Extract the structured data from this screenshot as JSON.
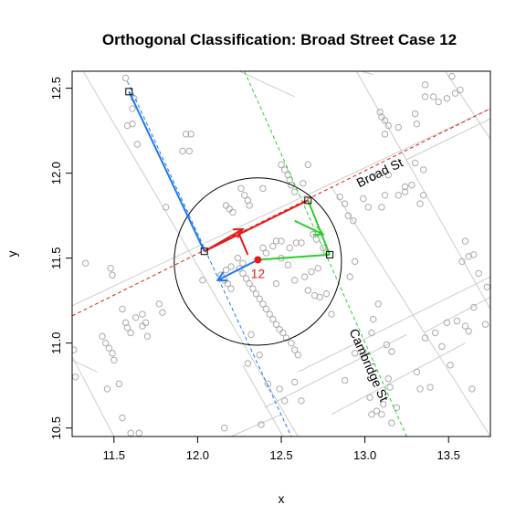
{
  "chart_data": {
    "type": "scatter",
    "title": "Orthogonal Classification: Broad Street Case 12",
    "xlabel": "x",
    "ylabel": "y",
    "xlim": [
      11.25,
      13.75
    ],
    "ylim": [
      10.45,
      12.6
    ],
    "xticks": [
      11.5,
      12.0,
      12.5,
      13.0,
      13.5
    ],
    "yticks": [
      10.5,
      11.0,
      11.5,
      12.0,
      12.5
    ],
    "xtick_labels": [
      "11.5",
      "12.0",
      "12.5",
      "13.0",
      "13.5"
    ],
    "ytick_labels": [
      "10.5",
      "11.0",
      "11.5",
      "12.0",
      "12.5"
    ],
    "grid": false,
    "colors": {
      "points": "#aaaaaa",
      "roads": "#cccccc",
      "case": "#e41a1c",
      "broad_street": "#e41a1c",
      "cambridge_street": "#2ecc2e",
      "orthogonal_blue": "#1f78f0",
      "circle": "#000000"
    },
    "points": [
      [
        11.57,
        12.56
      ],
      [
        11.62,
        12.44
      ],
      [
        11.61,
        12.38
      ],
      [
        11.58,
        12.28
      ],
      [
        11.61,
        12.29
      ],
      [
        11.64,
        12.17
      ],
      [
        11.93,
        12.23
      ],
      [
        11.91,
        12.13
      ],
      [
        11.95,
        12.13
      ],
      [
        11.96,
        12.23
      ],
      [
        12.17,
        11.81
      ],
      [
        12.19,
        11.79
      ],
      [
        12.21,
        11.77
      ],
      [
        12.26,
        11.91
      ],
      [
        12.28,
        11.87
      ],
      [
        12.3,
        11.84
      ],
      [
        12.31,
        11.81
      ],
      [
        12.39,
        11.91
      ],
      [
        12.39,
        11.56
      ],
      [
        12.41,
        11.53
      ],
      [
        12.45,
        11.57
      ],
      [
        12.47,
        11.6
      ],
      [
        12.5,
        11.6
      ],
      [
        12.55,
        11.56
      ],
      [
        12.59,
        11.59
      ],
      [
        12.62,
        11.59
      ],
      [
        12.5,
        12.05
      ],
      [
        12.52,
        12.02
      ],
      [
        12.54,
        11.99
      ],
      [
        12.55,
        11.96
      ],
      [
        12.56,
        11.93
      ],
      [
        12.58,
        11.89
      ],
      [
        12.63,
        11.94
      ],
      [
        12.66,
        12.05
      ],
      [
        12.69,
        11.64
      ],
      [
        12.71,
        11.61
      ],
      [
        12.75,
        11.56
      ],
      [
        12.77,
        11.53
      ],
      [
        12.25,
        11.44
      ],
      [
        12.27,
        11.41
      ],
      [
        12.29,
        11.38
      ],
      [
        12.31,
        11.35
      ],
      [
        12.33,
        11.32
      ],
      [
        12.35,
        11.29
      ],
      [
        12.37,
        11.26
      ],
      [
        12.39,
        11.23
      ],
      [
        12.41,
        11.2
      ],
      [
        12.43,
        11.17
      ],
      [
        12.45,
        11.14
      ],
      [
        12.47,
        11.11
      ],
      [
        12.49,
        11.08
      ],
      [
        12.51,
        11.06
      ],
      [
        12.53,
        11.03
      ],
      [
        12.56,
        11.0
      ],
      [
        12.58,
        10.96
      ],
      [
        12.6,
        10.93
      ],
      [
        12.24,
        11.5
      ],
      [
        12.27,
        11.47
      ],
      [
        12.14,
        11.4
      ],
      [
        12.16,
        11.37
      ],
      [
        12.18,
        11.35
      ],
      [
        12.2,
        11.32
      ],
      [
        12.17,
        11.43
      ],
      [
        12.2,
        11.45
      ],
      [
        12.32,
        11.05
      ],
      [
        12.37,
        10.93
      ],
      [
        12.3,
        10.88
      ],
      [
        12.49,
        10.73
      ],
      [
        12.52,
        10.66
      ],
      [
        12.38,
        10.52
      ],
      [
        12.16,
        10.5
      ],
      [
        12.42,
        10.76
      ],
      [
        12.62,
        10.66
      ],
      [
        12.58,
        10.77
      ],
      [
        12.47,
        11.35
      ],
      [
        12.58,
        11.37
      ],
      [
        12.64,
        11.39
      ],
      [
        12.68,
        11.42
      ],
      [
        12.72,
        11.44
      ],
      [
        12.66,
        11.31
      ],
      [
        12.7,
        11.28
      ],
      [
        12.73,
        11.27
      ],
      [
        12.77,
        11.29
      ],
      [
        12.91,
        11.39
      ],
      [
        12.94,
        11.48
      ],
      [
        12.9,
        11.75
      ],
      [
        12.93,
        11.72
      ],
      [
        13.02,
        11.8
      ],
      [
        12.85,
        11.86
      ],
      [
        12.88,
        11.82
      ],
      [
        12.99,
        11.85
      ],
      [
        12.54,
        11.46
      ],
      [
        12.5,
        11.5
      ],
      [
        12.03,
        11.37
      ],
      [
        13.09,
        12.36
      ],
      [
        13.1,
        12.33
      ],
      [
        13.12,
        12.31
      ],
      [
        13.14,
        12.28
      ],
      [
        13.12,
        12.23
      ],
      [
        13.2,
        12.27
      ],
      [
        13.3,
        12.35
      ],
      [
        13.31,
        12.29
      ],
      [
        13.36,
        12.45
      ],
      [
        13.41,
        12.45
      ],
      [
        13.44,
        12.42
      ],
      [
        13.49,
        12.44
      ],
      [
        13.54,
        12.47
      ],
      [
        13.57,
        12.49
      ],
      [
        13.36,
        12.52
      ],
      [
        13.52,
        12.57
      ],
      [
        13.3,
        12.06
      ],
      [
        13.35,
        12.02
      ],
      [
        13.24,
        11.92
      ],
      [
        13.28,
        11.93
      ],
      [
        13.24,
        11.89
      ],
      [
        13.35,
        11.87
      ],
      [
        13.12,
        11.87
      ],
      [
        13.2,
        11.87
      ],
      [
        13.33,
        11.82
      ],
      [
        13.05,
        11.98
      ],
      [
        13.14,
        11.99
      ],
      [
        13.1,
        11.8
      ],
      [
        13.6,
        11.6
      ],
      [
        13.62,
        11.51
      ],
      [
        13.65,
        11.52
      ],
      [
        13.58,
        11.48
      ],
      [
        13.68,
        11.41
      ],
      [
        13.73,
        11.33
      ],
      [
        13.65,
        11.21
      ],
      [
        13.72,
        11.11
      ],
      [
        13.6,
        11.1
      ],
      [
        13.55,
        11.13
      ],
      [
        13.36,
        11.03
      ],
      [
        13.46,
        10.98
      ],
      [
        13.42,
        11.06
      ],
      [
        13.62,
        11.07
      ],
      [
        13.49,
        11.12
      ],
      [
        13.51,
        10.87
      ],
      [
        13.64,
        10.73
      ],
      [
        13.31,
        10.83
      ],
      [
        13.33,
        10.73
      ],
      [
        13.39,
        10.74
      ],
      [
        13.15,
        10.74
      ],
      [
        13.03,
        10.68
      ],
      [
        13.11,
        10.64
      ],
      [
        13.07,
        10.6
      ],
      [
        13.19,
        10.62
      ],
      [
        13.1,
        10.58
      ],
      [
        13.04,
        10.58
      ],
      [
        13.16,
        10.53
      ],
      [
        13.14,
        10.79
      ],
      [
        12.88,
        10.78
      ],
      [
        12.94,
        10.94
      ],
      [
        12.99,
        10.95
      ],
      [
        13.04,
        11.06
      ],
      [
        13.13,
        10.99
      ],
      [
        13.16,
        10.95
      ],
      [
        13.05,
        11.14
      ],
      [
        13.08,
        11.23
      ],
      [
        12.8,
        11.17
      ],
      [
        11.33,
        11.47
      ],
      [
        11.48,
        11.44
      ],
      [
        11.49,
        11.4
      ],
      [
        11.55,
        11.2
      ],
      [
        11.57,
        11.12
      ],
      [
        11.58,
        11.09
      ],
      [
        11.6,
        11.06
      ],
      [
        11.63,
        11.15
      ],
      [
        11.67,
        11.1
      ],
      [
        11.67,
        11.17
      ],
      [
        11.69,
        11.12
      ],
      [
        11.77,
        11.23
      ],
      [
        11.79,
        11.18
      ],
      [
        11.7,
        11.04
      ],
      [
        11.43,
        11.04
      ],
      [
        11.45,
        11.0
      ],
      [
        11.47,
        10.97
      ],
      [
        11.49,
        10.94
      ],
      [
        11.5,
        10.9
      ],
      [
        11.53,
        10.76
      ],
      [
        11.46,
        10.73
      ],
      [
        11.55,
        10.56
      ],
      [
        11.6,
        10.47
      ],
      [
        11.65,
        10.47
      ],
      [
        11.64,
        10.4
      ],
      [
        11.26,
        10.96
      ],
      [
        11.27,
        10.8
      ],
      [
        11.81,
        11.8
      ]
    ],
    "roads": [
      [
        [
          11.25,
          11.22
        ],
        [
          13.75,
          12.38
        ]
      ],
      [
        [
          11.25,
          12.71
        ],
        [
          12.6,
          10.45
        ]
      ],
      [
        [
          11.75,
          12.6
        ],
        [
          11.8,
          12.6
        ]
      ],
      [
        [
          12.25,
          12.6
        ],
        [
          12.58,
          12.45
        ]
      ],
      [
        [
          13.25,
          12.08
        ],
        [
          13.75,
          12.32
        ]
      ],
      [
        [
          12.8,
          11.92
        ],
        [
          13.75,
          10.45
        ]
      ],
      [
        [
          13.35,
          11.06
        ],
        [
          13.75,
          11.27
        ]
      ],
      [
        [
          12.6,
          10.83
        ],
        [
          13.75,
          11.39
        ]
      ],
      [
        [
          12.4,
          10.62
        ],
        [
          13.25,
          11.05
        ]
      ],
      [
        [
          12.8,
          10.58
        ],
        [
          13.6,
          11.0
        ]
      ],
      [
        [
          11.25,
          10.9
        ],
        [
          11.4,
          10.83
        ]
      ],
      [
        [
          12.27,
          10.87
        ],
        [
          12.51,
          10.45
        ]
      ],
      [
        [
          11.25,
          10.92
        ],
        [
          11.5,
          10.45
        ]
      ],
      [
        [
          12.2,
          10.45
        ],
        [
          12.5,
          10.58
        ]
      ],
      [
        [
          12.95,
          12.6
        ],
        [
          13.75,
          11.2
        ]
      ],
      [
        [
          13.48,
          12.6
        ],
        [
          13.75,
          12.2
        ]
      ],
      [
        [
          12.98,
          12.6
        ],
        [
          13.05,
          12.58
        ]
      ]
    ],
    "broad_street": {
      "name": "Broad St",
      "line": [
        [
          11.25,
          11.16
        ],
        [
          13.75,
          12.38
        ]
      ],
      "label_at": [
        13.1,
        11.98
      ]
    },
    "cambridge_street": {
      "name": "Cambridge St",
      "line": [
        [
          12.28,
          12.6
        ],
        [
          13.25,
          10.45
        ]
      ],
      "label_at": [
        13.0,
        10.86
      ]
    },
    "blue_line": [
      [
        11.58,
        12.54
      ],
      [
        12.56,
        10.45
      ]
    ],
    "circle": {
      "center": [
        12.36,
        11.48
      ],
      "radius": 0.5
    },
    "case": {
      "label": "12",
      "point": [
        12.36,
        11.49
      ]
    },
    "square_markers": [
      [
        11.59,
        12.48
      ],
      [
        12.04,
        11.54
      ],
      [
        12.66,
        11.84
      ],
      [
        12.79,
        11.52
      ]
    ],
    "vectors": [
      {
        "color": "#1f78f0",
        "from": [
          12.36,
          11.49
        ],
        "to": [
          12.12,
          11.37
        ]
      },
      {
        "color": "#1f78f0",
        "from": [
          11.59,
          12.48
        ],
        "to": [
          12.04,
          11.54
        ],
        "arrow": false
      },
      {
        "color": "#e41a1c",
        "from": [
          12.04,
          11.54
        ],
        "to": [
          12.66,
          11.84
        ],
        "arrow": false
      },
      {
        "color": "#e41a1c",
        "from": [
          12.3,
          11.52
        ],
        "to": [
          12.24,
          11.66
        ],
        "arrow": false
      },
      {
        "color": "#e41a1c",
        "from": [
          12.04,
          11.54
        ],
        "to": [
          12.27,
          11.67
        ]
      },
      {
        "color": "#2ecc2e",
        "from": [
          12.36,
          11.49
        ],
        "to": [
          12.79,
          11.52
        ],
        "arrow": false
      },
      {
        "color": "#2ecc2e",
        "from": [
          12.66,
          11.84
        ],
        "to": [
          12.79,
          11.52
        ],
        "arrow": false
      },
      {
        "color": "#2ecc2e",
        "from": [
          12.58,
          11.72
        ],
        "to": [
          12.75,
          11.64
        ]
      }
    ]
  }
}
